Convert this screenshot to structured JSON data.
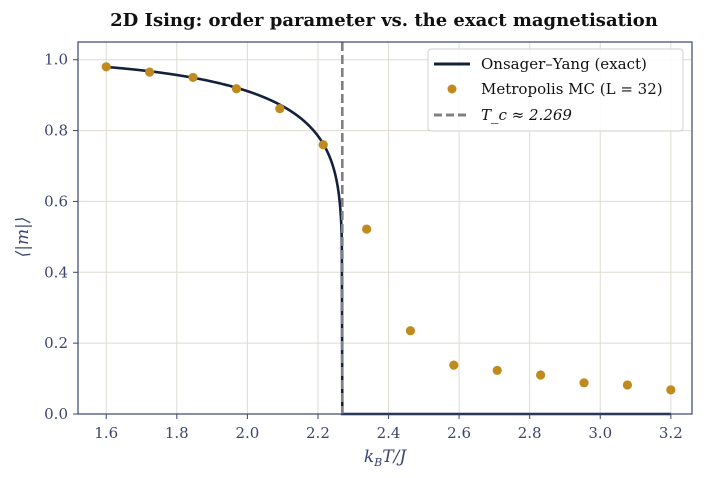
{
  "colors": {
    "exact_line": "#14213d",
    "mc_points": "#c08a1e",
    "tc_line": "#808080",
    "axis": "#3b4470",
    "grid": "#dedbd2"
  },
  "chart_data": {
    "type": "line",
    "title": "2D Ising: order parameter vs. the exact magnetisation",
    "xlabel": "k_B T/J",
    "ylabel": "⟨|m|⟩",
    "xlim": [
      1.52,
      3.26
    ],
    "ylim": [
      0.0,
      1.05
    ],
    "xticks": [
      "1.6",
      "1.8",
      "2.0",
      "2.2",
      "2.4",
      "2.6",
      "2.8",
      "3.0",
      "3.2"
    ],
    "yticks": [
      "0.0",
      "0.2",
      "0.4",
      "0.6",
      "0.8",
      "1.0"
    ],
    "grid": true,
    "legend_position": "top-right",
    "series": [
      {
        "name": "Onsager–Yang (exact)",
        "kind": "line",
        "x_range": [
          1.6,
          3.2
        ],
        "tc": 2.269
      },
      {
        "name": "Metropolis MC (L = 32)",
        "kind": "scatter",
        "x": [
          1.6,
          1.723,
          1.846,
          1.969,
          2.092,
          2.215,
          2.338,
          2.462,
          2.585,
          2.708,
          2.831,
          2.954,
          3.077,
          3.2
        ],
        "y": [
          0.98,
          0.965,
          0.95,
          0.918,
          0.862,
          0.76,
          0.522,
          0.235,
          0.138,
          0.123,
          0.11,
          0.088,
          0.082,
          0.068
        ]
      },
      {
        "name": "T_c ≈ 2.269",
        "kind": "vline",
        "x": 2.269
      }
    ]
  }
}
